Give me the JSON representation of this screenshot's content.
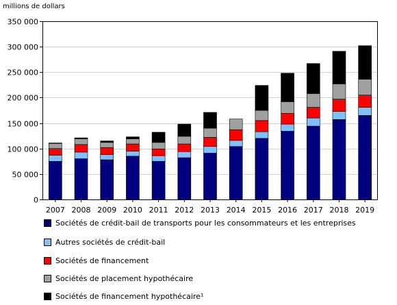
{
  "chart_data": {
    "type": "bar",
    "stacked": true,
    "ylabel": "millions de dollars",
    "xlabel": "",
    "title": "",
    "ylim": [
      0,
      350000
    ],
    "yticks": [
      0,
      50000,
      100000,
      150000,
      200000,
      250000,
      300000,
      350000
    ],
    "ytick_labels": [
      "0",
      "50 000",
      "100 000",
      "150 000",
      "200 000",
      "250 000",
      "300 000",
      "350 000"
    ],
    "grid": true,
    "legend_position": "bottom",
    "categories": [
      "2007",
      "2008",
      "2009",
      "2010",
      "2011",
      "2012",
      "2013",
      "2014",
      "2015",
      "2016",
      "2017",
      "2018",
      "2019"
    ],
    "series": [
      {
        "name": "Sociétés de crédit-bail de transports pour les consommateurs et les entreprises",
        "color": "#000080",
        "values": [
          75000,
          80000,
          78000,
          85000,
          75000,
          82000,
          91000,
          104000,
          120000,
          134000,
          144000,
          157000,
          165000
        ]
      },
      {
        "name": "Autres sociétés de crédit-bail",
        "color": "#80c0ff",
        "values": [
          12000,
          13000,
          10000,
          10000,
          11000,
          12000,
          13000,
          12000,
          13000,
          14000,
          16000,
          16000,
          16000
        ]
      },
      {
        "name": "Sociétés de financement",
        "color": "#ff0000",
        "values": [
          13000,
          15000,
          14000,
          14000,
          13000,
          15000,
          18000,
          21000,
          22000,
          21000,
          21000,
          24000,
          24000
        ]
      },
      {
        "name": "Sociétés de placement hypothécaire",
        "color": "#a0a0a0",
        "values": [
          10000,
          11000,
          10000,
          10000,
          13000,
          15000,
          18000,
          21000,
          20000,
          23000,
          27000,
          30000,
          31000
        ]
      },
      {
        "name": "Sociétés de financement hypothécaire¹",
        "color": "#000000",
        "values": [
          1000,
          2000,
          3000,
          4000,
          20000,
          24000,
          31000,
          0,
          49000,
          56000,
          59000,
          64000,
          66000
        ]
      }
    ]
  }
}
